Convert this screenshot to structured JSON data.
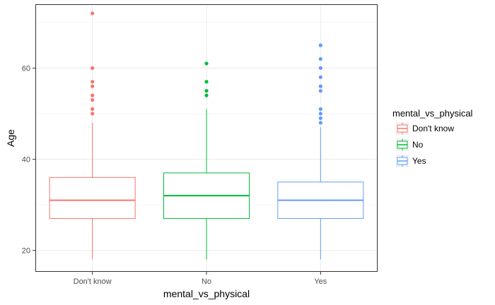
{
  "chart_data": {
    "type": "boxplot",
    "title": "",
    "xlabel": "mental_vs_physical",
    "ylabel": "Age",
    "ylim": [
      15.3,
      74
    ],
    "yticks": [
      20,
      40,
      60
    ],
    "grid": true,
    "legend": {
      "title": "mental_vs_physical",
      "placement": "right"
    },
    "categories": [
      "Don't know",
      "No",
      "Yes"
    ],
    "series": [
      {
        "name": "Don't know",
        "color": "#F8766D",
        "whisker_low": 18,
        "q1": 27,
        "median": 31,
        "q3": 36,
        "whisker_high": 48,
        "outliers": [
          50,
          51,
          53,
          54,
          56,
          57,
          60,
          72
        ]
      },
      {
        "name": "No",
        "color": "#00BA38",
        "whisker_low": 18,
        "q1": 27,
        "median": 32,
        "q3": 37,
        "whisker_high": 51,
        "outliers": [
          54,
          55,
          57,
          61
        ]
      },
      {
        "name": "Yes",
        "color": "#619CFF",
        "whisker_low": 18,
        "q1": 27,
        "median": 31,
        "q3": 35,
        "whisker_high": 47,
        "outliers": [
          48,
          49,
          50,
          51,
          55,
          56,
          58,
          60,
          62,
          65
        ]
      }
    ]
  }
}
